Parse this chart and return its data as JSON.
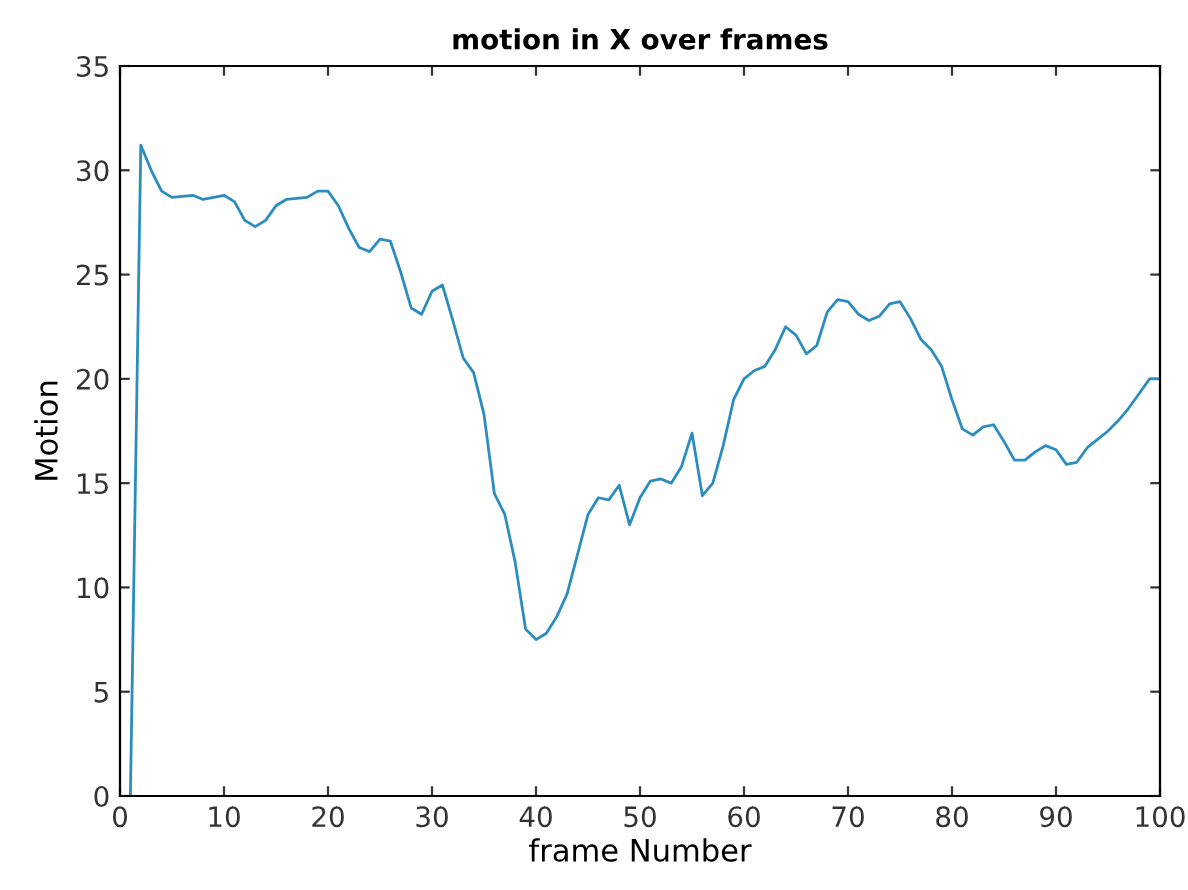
{
  "chart_data": {
    "type": "line",
    "title": "motion in X over frames",
    "xlabel": "frame Number",
    "ylabel": "Motion",
    "xlim": [
      0,
      100
    ],
    "ylim": [
      0,
      35
    ],
    "xticks": [
      0,
      10,
      20,
      30,
      40,
      50,
      60,
      70,
      80,
      90,
      100
    ],
    "yticks": [
      0,
      5,
      10,
      15,
      20,
      25,
      30,
      35
    ],
    "grid": false,
    "series": [
      {
        "color": "#2a8cbf",
        "x": [
          1,
          2,
          3,
          4,
          5,
          7,
          8,
          10,
          11,
          12,
          13,
          14,
          15,
          16,
          18,
          19,
          20,
          21,
          22,
          23,
          24,
          25,
          26,
          27,
          28,
          29,
          30,
          31,
          32,
          33,
          34,
          35,
          36,
          37,
          38,
          39,
          40,
          41,
          42,
          43,
          44,
          45,
          46,
          47,
          48,
          49,
          50,
          51,
          52,
          53,
          54,
          55,
          56,
          57,
          58,
          59,
          60,
          61,
          62,
          63,
          64,
          65,
          66,
          67,
          68,
          69,
          70,
          71,
          72,
          73,
          74,
          75,
          76,
          77,
          78,
          79,
          80,
          81,
          82,
          83,
          84,
          85,
          86,
          87,
          88,
          89,
          90,
          91,
          92,
          93,
          94,
          95,
          96,
          97,
          98,
          99,
          100
        ],
        "values": [
          0,
          31.2,
          30,
          29,
          28.7,
          28.8,
          28.6,
          28.8,
          28.5,
          27.6,
          27.3,
          27.6,
          28.3,
          28.6,
          28.7,
          29,
          29,
          28.3,
          27.2,
          26.3,
          26.1,
          26.7,
          26.6,
          25.1,
          23.4,
          23.1,
          24.2,
          24.5,
          22.8,
          21,
          20.3,
          18.3,
          14.5,
          13.5,
          11.2,
          8,
          7.5,
          7.8,
          8.6,
          9.7,
          11.6,
          13.5,
          14.3,
          14.2,
          14.9,
          13,
          14.3,
          15.1,
          15.2,
          15,
          15.8,
          17.4,
          14.4,
          15,
          16.8,
          19,
          20,
          20.4,
          20.6,
          21.4,
          22.5,
          22.1,
          21.2,
          21.6,
          23.2,
          23.8,
          23.7,
          23.1,
          22.8,
          23,
          23.6,
          23.7,
          22.9,
          21.9,
          21.4,
          20.6,
          19,
          17.6,
          17.3,
          17.7,
          17.8,
          17,
          16.1,
          16.1,
          16.5,
          16.8,
          16.6,
          15.9,
          16,
          16.7,
          17.1,
          17.5,
          18,
          18.6,
          19.3,
          20,
          20
        ]
      }
    ]
  }
}
